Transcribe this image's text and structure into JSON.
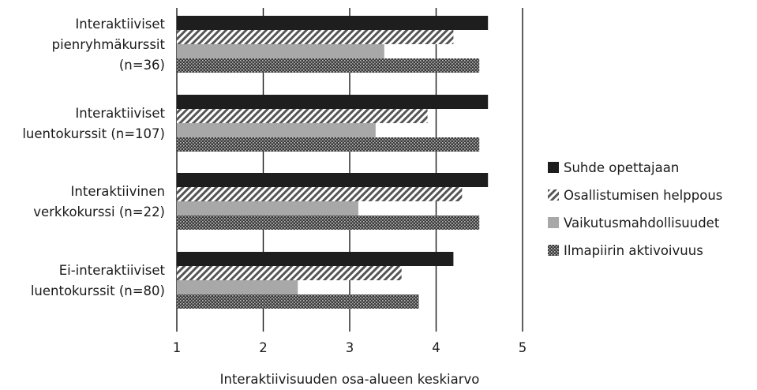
{
  "chart_data": {
    "type": "bar",
    "orientation": "horizontal",
    "xlabel": "Interaktiivisuuden osa-alueen keskiarvo",
    "xlim": [
      1,
      5
    ],
    "xticks": [
      1,
      2,
      3,
      4,
      5
    ],
    "grid": "vertical",
    "legend_position": "right",
    "categories": [
      [
        "Interaktiiviset",
        "pienryhmäkurssit",
        "(n=36)"
      ],
      [
        "Interaktiiviset",
        "luentokurssit (n=107)"
      ],
      [
        "Interaktiivinen",
        "verkkokurssi (n=22)"
      ],
      [
        "Ei-interaktiiviset",
        "luentokurssit (n=80)"
      ]
    ],
    "series": [
      {
        "name": "Suhde opettajaan",
        "pattern": "solid",
        "color": "#1e1e1e",
        "values": [
          4.6,
          4.6,
          4.6,
          4.2
        ]
      },
      {
        "name": "Osallistumisen helppous",
        "pattern": "diagonal",
        "color": "#555555",
        "values": [
          4.2,
          3.9,
          4.3,
          3.6
        ]
      },
      {
        "name": "Vaikutusmahdollisuudet",
        "pattern": "solid",
        "color": "#a8a8a8",
        "values": [
          3.4,
          3.3,
          3.1,
          2.4
        ]
      },
      {
        "name": "Ilmapiirin aktivoivuus",
        "pattern": "dotted",
        "color": "#3c3c3c",
        "values": [
          4.5,
          4.5,
          4.5,
          3.8
        ]
      }
    ]
  }
}
